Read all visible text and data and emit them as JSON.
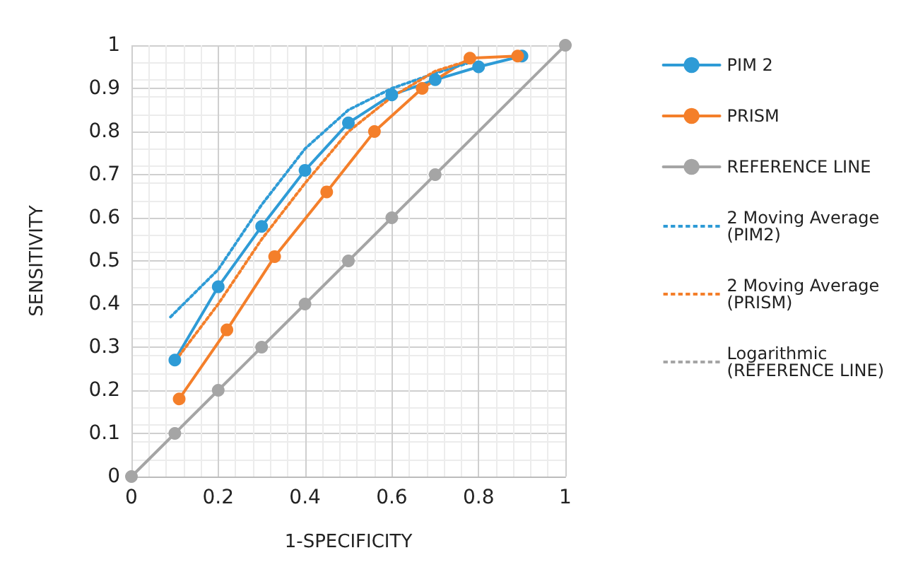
{
  "chart_data": {
    "type": "line",
    "xlabel": "1-SPECIFICITY",
    "ylabel": "SENSITIVITY",
    "xlim": [
      0,
      1
    ],
    "xticks": [
      0,
      0.2,
      0.4,
      0.6,
      0.8,
      1
    ],
    "ylim": [
      0,
      1
    ],
    "yticks": [
      0,
      0.1,
      0.2,
      0.3,
      0.4,
      0.5,
      0.6,
      0.7,
      0.8,
      0.9,
      1
    ],
    "grid": true,
    "legend": "right",
    "marker": "circle",
    "line_style": "solid",
    "series": [
      {
        "name": "PIM 2",
        "color": "#2e9bd6",
        "x": [
          0.1,
          0.2,
          0.3,
          0.4,
          0.5,
          0.6,
          0.7,
          0.8,
          0.9
        ],
        "values": [
          0.27,
          0.44,
          0.58,
          0.71,
          0.82,
          0.885,
          0.92,
          0.95,
          0.975
        ]
      },
      {
        "name": "PRISM",
        "color": "#f47f2a",
        "x": [
          0.11,
          0.22,
          0.33,
          0.45,
          0.56,
          0.67,
          0.78,
          0.89
        ],
        "values": [
          0.18,
          0.34,
          0.51,
          0.66,
          0.8,
          0.9,
          0.97,
          0.975
        ]
      },
      {
        "name": "REFERENCE LINE",
        "color": "#a5a5a5",
        "x": [
          0,
          0.1,
          0.2,
          0.3,
          0.4,
          0.5,
          0.6,
          0.7,
          1
        ],
        "values": [
          0,
          0.1,
          0.2,
          0.3,
          0.4,
          0.5,
          0.6,
          0.7,
          1
        ]
      },
      {
        "name": "2 Moving Average (PIM2)",
        "color": "#2e9bd6",
        "marker": "none",
        "line_style": "dotted",
        "x": [
          0.09,
          0.2,
          0.3,
          0.4,
          0.5,
          0.6,
          0.7,
          0.78
        ],
        "values": [
          0.37,
          0.48,
          0.63,
          0.76,
          0.85,
          0.9,
          0.935,
          0.96
        ]
      },
      {
        "name": "2 Moving Average (PRISM)",
        "color": "#f47f2a",
        "marker": "none",
        "line_style": "dotted",
        "x": [
          0.11,
          0.2,
          0.3,
          0.4,
          0.5,
          0.6,
          0.7,
          0.78
        ],
        "values": [
          0.28,
          0.4,
          0.55,
          0.68,
          0.8,
          0.88,
          0.94,
          0.965
        ]
      },
      {
        "name": "Logarithmic (REFERENCE LINE)",
        "color": "#a5a5a5",
        "marker": "none",
        "line_style": "dotted"
      }
    ]
  }
}
